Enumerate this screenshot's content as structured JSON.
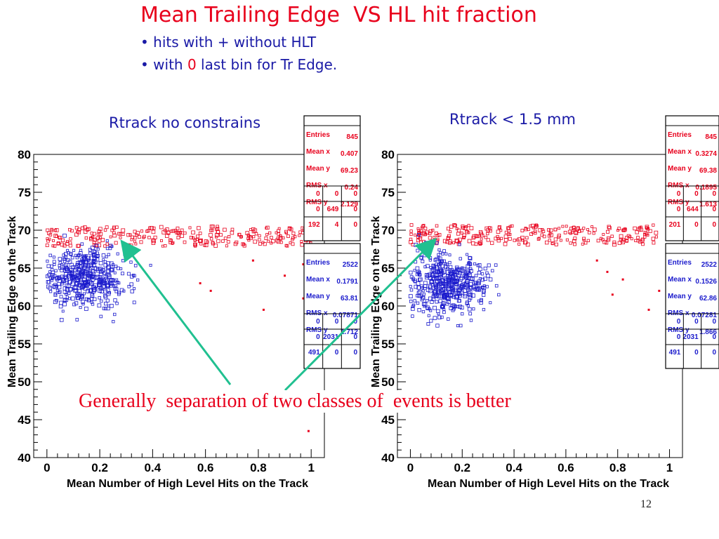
{
  "slide": {
    "title": "Mean Trailing Edge  VS HL hit fraction",
    "bullets": [
      {
        "text": "hits with + without HLT",
        "prefix": "• "
      },
      {
        "text_before": "with ",
        "highlight": "0",
        "text_after": " last bin for Tr Edge.",
        "prefix": "• "
      }
    ],
    "conclusion": "Generally  separation of two classes of  events is better",
    "slide_number": "12"
  },
  "colors": {
    "red_series": "#e8001c",
    "blue_series": "#1a1acc",
    "arrow": "#20c090",
    "text_blue": "#1a1aa6"
  },
  "chart_data": [
    {
      "type": "scatter",
      "title": "Rtrack no constrains",
      "xlabel": "Mean Number of High Level Hits on the Track",
      "ylabel": "Mean Trailing Edge on the Track",
      "xlim": [
        -0.05,
        1.05
      ],
      "ylim": [
        40,
        80
      ],
      "xticks": [
        "0",
        "0.2",
        "0.4",
        "0.6",
        "0.8",
        "1"
      ],
      "yticks": [
        "40",
        "45",
        "50",
        "55",
        "60",
        "65",
        "70",
        "75",
        "80"
      ],
      "series": [
        {
          "color": "#e8001c",
          "stats": {
            "header": "Entries",
            "entries": "845",
            "mean_x": "0.407",
            "mean_y": "69.23",
            "rms_x": "0.24",
            "rms_y": "2.129",
            "grid": [
              [
                "0",
                "0",
                "0"
              ],
              [
                "0",
                "649",
                "0"
              ],
              [
                "192",
                "4",
                "0"
              ]
            ]
          },
          "cloud": {
            "x": [
              0.0,
              1.0
            ],
            "y_center": 69.2,
            "y_spread": 1.8
          },
          "outliers": [
            [
              0.58,
              63.0
            ],
            [
              0.62,
              62.0
            ],
            [
              0.97,
              61.0
            ],
            [
              0.82,
              59.5
            ],
            [
              0.99,
              43.5
            ],
            [
              0.97,
              65.5
            ],
            [
              0.78,
              66.0
            ],
            [
              0.9,
              64.0
            ]
          ]
        },
        {
          "color": "#1a1acc",
          "stats": {
            "header": "Entries",
            "entries": "2522",
            "mean_x": "0.1791",
            "mean_y": "63.81",
            "rms_x": "0.07871",
            "rms_y": "1.712",
            "grid": [
              [
                "0",
                "0",
                "0"
              ],
              [
                "0",
                "2031",
                "0"
              ],
              [
                "491",
                "0",
                "0"
              ]
            ]
          },
          "cloud": {
            "x": [
              0.0,
              0.42
            ],
            "y_center": 63.8,
            "y_spread": 2.2
          }
        }
      ]
    },
    {
      "type": "scatter",
      "title": "Rtrack < 1.5 mm",
      "xlabel": "Mean Number of High Level Hits on the Track",
      "ylabel": "Mean Trailing Edge on the Track",
      "xlim": [
        -0.05,
        1.05
      ],
      "ylim": [
        40,
        80
      ],
      "xticks": [
        "0",
        "0.2",
        "0.4",
        "0.6",
        "0.8",
        "1"
      ],
      "yticks": [
        "40",
        "45",
        "50",
        "55",
        "60",
        "65",
        "70",
        "75",
        "80"
      ],
      "series": [
        {
          "color": "#e8001c",
          "stats": {
            "header": "Entries",
            "entries": "845",
            "mean_x": "0.3274",
            "mean_y": "69.38",
            "rms_x": "0.1895",
            "rms_y": "1.613",
            "grid": [
              [
                "0",
                "0",
                "0"
              ],
              [
                "0",
                "644",
                "0"
              ],
              [
                "201",
                "0",
                "0"
              ]
            ]
          },
          "cloud": {
            "x": [
              0.0,
              0.95
            ],
            "y_center": 69.4,
            "y_spread": 1.5
          },
          "outliers": [
            [
              0.72,
              66.0
            ],
            [
              0.76,
              64.5
            ],
            [
              0.82,
              63.5
            ],
            [
              0.78,
              61.5
            ],
            [
              0.96,
              62.0
            ],
            [
              0.92,
              59.5
            ]
          ]
        },
        {
          "color": "#1a1acc",
          "stats": {
            "header": "Entries",
            "entries": "2522",
            "mean_x": "0.1526",
            "mean_y": "62.86",
            "rms_x": "0.07281",
            "rms_y": "1.866",
            "grid": [
              [
                "0",
                "0",
                "0"
              ],
              [
                "0",
                "2031",
                "0"
              ],
              [
                "491",
                "0",
                "0"
              ]
            ]
          },
          "cloud": {
            "x": [
              0.0,
              0.35
            ],
            "y_center": 62.9,
            "y_spread": 2.3
          }
        }
      ]
    }
  ],
  "stat_labels": {
    "entries": "Entries",
    "mean_x": "Mean x",
    "mean_y": "Mean y",
    "rms_x": "RMS x",
    "rms_y": "RMS y"
  }
}
